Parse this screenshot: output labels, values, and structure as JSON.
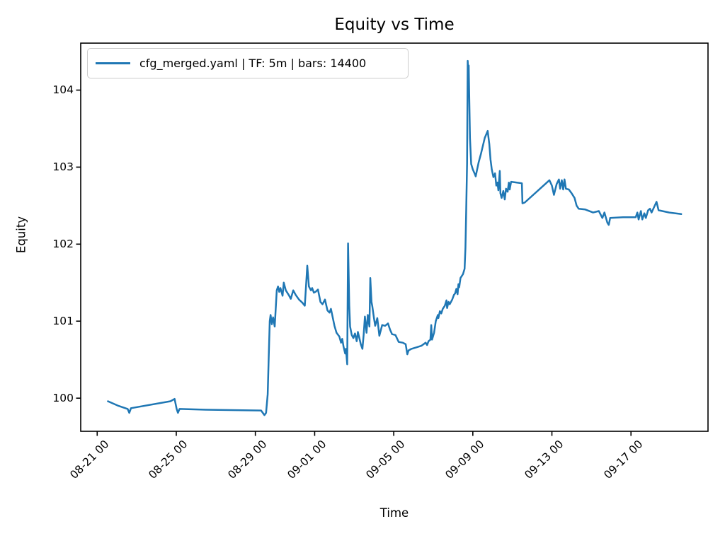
{
  "figure": {
    "background": "#ffffff",
    "text_color": "#000000"
  },
  "chart_data": {
    "type": "line",
    "title": "Equity vs Time",
    "xlabel": "Time",
    "ylabel": "Equity",
    "grid": false,
    "legend": {
      "position": "upper left",
      "entries": [
        "cfg_merged.yaml | TF: 5m | bars: 14400"
      ]
    },
    "line_color": "#1f77b4",
    "axis_color": "#000000",
    "legend_border_color": "#cccccc",
    "ylim": [
      99.57,
      104.61
    ],
    "x_range": [
      "08-20 04:00",
      "09-20 21:30"
    ],
    "y_ticks": [
      100,
      101,
      102,
      103,
      104
    ],
    "x_tick_labels": [
      "08-21 00",
      "08-25 00",
      "08-29 00",
      "09-01 00",
      "09-05 00",
      "09-09 00",
      "09-13 00",
      "09-17 00"
    ],
    "series": [
      {
        "name": "cfg_merged.yaml | TF: 5m | bars: 14400",
        "points": [
          [
            "08-21 13:00",
            99.96
          ],
          [
            "08-22 02:00",
            99.9
          ],
          [
            "08-22 13:00",
            99.86
          ],
          [
            "08-22 15:00",
            99.81
          ],
          [
            "08-22 17:00",
            99.87
          ],
          [
            "08-24 17:00",
            99.96
          ],
          [
            "08-24 22:00",
            99.99
          ],
          [
            "08-25 00:30",
            99.86
          ],
          [
            "08-25 02:00",
            99.81
          ],
          [
            "08-25 04:00",
            99.86
          ],
          [
            "08-26 12:00",
            99.85
          ],
          [
            "08-29 07:00",
            99.84
          ],
          [
            "08-29 11:00",
            99.78
          ],
          [
            "08-29 13:00",
            99.81
          ],
          [
            "08-29 15:00",
            100.05
          ],
          [
            "08-29 16:00",
            100.45
          ],
          [
            "08-29 17:30",
            101.0
          ],
          [
            "08-29 18:30",
            101.08
          ],
          [
            "08-29 20:00",
            100.96
          ],
          [
            "08-29 21:30",
            101.05
          ],
          [
            "08-29 23:30",
            100.93
          ],
          [
            "08-30 02:00",
            101.4
          ],
          [
            "08-30 03:30",
            101.45
          ],
          [
            "08-30 05:00",
            101.38
          ],
          [
            "08-30 06:30",
            101.43
          ],
          [
            "08-30 09:00",
            101.33
          ],
          [
            "08-30 10:30",
            101.5
          ],
          [
            "08-30 13:00",
            101.4
          ],
          [
            "08-30 16:30",
            101.34
          ],
          [
            "08-30 19:00",
            101.29
          ],
          [
            "08-30 22:00",
            101.4
          ],
          [
            "08-31 01:00",
            101.34
          ],
          [
            "08-31 05:00",
            101.28
          ],
          [
            "08-31 09:00",
            101.24
          ],
          [
            "08-31 12:00",
            101.2
          ],
          [
            "08-31 13:30",
            101.45
          ],
          [
            "08-31 15:00",
            101.72
          ],
          [
            "08-31 17:00",
            101.45
          ],
          [
            "08-31 19:30",
            101.4
          ],
          [
            "08-31 21:00",
            101.43
          ],
          [
            "08-31 23:00",
            101.37
          ],
          [
            "09-01 01:00",
            101.38
          ],
          [
            "09-01 04:00",
            101.41
          ],
          [
            "09-01 07:00",
            101.25
          ],
          [
            "09-01 09:30",
            101.22
          ],
          [
            "09-01 12:30",
            101.28
          ],
          [
            "09-01 15:30",
            101.14
          ],
          [
            "09-01 18:00",
            101.11
          ],
          [
            "09-01 19:45",
            101.16
          ],
          [
            "09-02 00:00",
            100.94
          ],
          [
            "09-02 02:30",
            100.85
          ],
          [
            "09-02 06:00",
            100.8
          ],
          [
            "09-02 08:00",
            100.72
          ],
          [
            "09-02 09:30",
            100.77
          ],
          [
            "09-02 11:00",
            100.67
          ],
          [
            "09-02 13:00",
            100.58
          ],
          [
            "09-02 14:00",
            100.64
          ],
          [
            "09-02 15:30",
            100.44
          ],
          [
            "09-02 16:30",
            102.01
          ],
          [
            "09-02 18:00",
            101.2
          ],
          [
            "09-02 19:00",
            100.93
          ],
          [
            "09-02 21:00",
            100.82
          ],
          [
            "09-02 23:00",
            100.78
          ],
          [
            "09-03 01:00",
            100.84
          ],
          [
            "09-03 03:00",
            100.74
          ],
          [
            "09-03 04:30",
            100.86
          ],
          [
            "09-03 06:00",
            100.79
          ],
          [
            "09-03 08:00",
            100.7
          ],
          [
            "09-03 10:00",
            100.64
          ],
          [
            "09-03 11:30",
            100.83
          ],
          [
            "09-03 13:00",
            101.06
          ],
          [
            "09-03 15:00",
            100.85
          ],
          [
            "09-03 16:30",
            101.08
          ],
          [
            "09-03 18:30",
            100.93
          ],
          [
            "09-03 19:30",
            101.56
          ],
          [
            "09-03 21:00",
            101.25
          ],
          [
            "09-03 22:00",
            101.19
          ],
          [
            "09-04 00:00",
            101.04
          ],
          [
            "09-04 01:30",
            100.94
          ],
          [
            "09-04 04:00",
            101.04
          ],
          [
            "09-04 06:30",
            100.81
          ],
          [
            "09-04 10:00",
            100.95
          ],
          [
            "09-04 13:30",
            100.94
          ],
          [
            "09-04 17:00",
            100.97
          ],
          [
            "09-04 19:30",
            100.89
          ],
          [
            "09-04 22:00",
            100.83
          ],
          [
            "09-05 02:00",
            100.82
          ],
          [
            "09-05 06:00",
            100.73
          ],
          [
            "09-05 11:00",
            100.72
          ],
          [
            "09-05 14:30",
            100.7
          ],
          [
            "09-05 16:30",
            100.57
          ],
          [
            "09-05 18:00",
            100.62
          ],
          [
            "09-05 21:30",
            100.64
          ],
          [
            "09-06 03:30",
            100.66
          ],
          [
            "09-06 09:30",
            100.68
          ],
          [
            "09-06 14:45",
            100.72
          ],
          [
            "09-06 16:30",
            100.69
          ],
          [
            "09-06 18:15",
            100.74
          ],
          [
            "09-06 20:30",
            100.76
          ],
          [
            "09-06 21:30",
            100.95
          ],
          [
            "09-06 22:30",
            100.76
          ],
          [
            "09-07 01:00",
            100.85
          ],
          [
            "09-07 03:00",
            101.0
          ],
          [
            "09-07 05:30",
            101.08
          ],
          [
            "09-07 06:15",
            101.04
          ],
          [
            "09-07 08:00",
            101.13
          ],
          [
            "09-07 09:45",
            101.1
          ],
          [
            "09-07 11:30",
            101.16
          ],
          [
            "09-07 14:00",
            101.2
          ],
          [
            "09-07 16:00",
            101.27
          ],
          [
            "09-07 16:45",
            101.17
          ],
          [
            "09-07 18:30",
            101.25
          ],
          [
            "09-07 20:00",
            101.22
          ],
          [
            "09-07 23:00",
            101.28
          ],
          [
            "09-08 01:00",
            101.34
          ],
          [
            "09-08 02:30",
            101.36
          ],
          [
            "09-08 04:00",
            101.42
          ],
          [
            "09-08 05:30",
            101.35
          ],
          [
            "09-08 06:30",
            101.48
          ],
          [
            "09-08 07:30",
            101.44
          ],
          [
            "09-08 09:00",
            101.56
          ],
          [
            "09-08 12:00",
            101.61
          ],
          [
            "09-08 14:00",
            101.68
          ],
          [
            "09-08 15:00",
            101.95
          ],
          [
            "09-08 16:00",
            102.45
          ],
          [
            "09-08 17:00",
            103.05
          ],
          [
            "09-08 17:45",
            104.38
          ],
          [
            "09-08 18:30",
            104.22
          ],
          [
            "09-08 19:00",
            104.32
          ],
          [
            "09-08 20:30",
            103.38
          ],
          [
            "09-08 22:00",
            103.04
          ],
          [
            "09-09 00:00",
            102.97
          ],
          [
            "09-09 02:30",
            102.91
          ],
          [
            "09-09 03:30",
            102.88
          ],
          [
            "09-09 07:00",
            103.06
          ],
          [
            "09-09 10:00",
            103.18
          ],
          [
            "09-09 14:30",
            103.38
          ],
          [
            "09-09 18:00",
            103.47
          ],
          [
            "09-09 20:00",
            103.3
          ],
          [
            "09-09 21:30",
            103.1
          ],
          [
            "09-09 23:00",
            102.97
          ],
          [
            "09-10 01:00",
            102.87
          ],
          [
            "09-10 03:00",
            102.92
          ],
          [
            "09-10 04:30",
            102.76
          ],
          [
            "09-10 06:00",
            102.8
          ],
          [
            "09-10 07:00",
            102.7
          ],
          [
            "09-10 08:45",
            102.95
          ],
          [
            "09-10 09:30",
            102.66
          ],
          [
            "09-10 11:00",
            102.6
          ],
          [
            "09-10 13:00",
            102.69
          ],
          [
            "09-10 14:45",
            102.58
          ],
          [
            "09-10 16:15",
            102.72
          ],
          [
            "09-10 18:15",
            102.68
          ],
          [
            "09-10 19:45",
            102.8
          ],
          [
            "09-10 20:45",
            102.71
          ],
          [
            "09-10 22:30",
            102.81
          ],
          [
            "09-11 05:30",
            102.8
          ],
          [
            "09-11 11:30",
            102.79
          ],
          [
            "09-11 12:15",
            102.53
          ],
          [
            "09-11 15:00",
            102.54
          ],
          [
            "09-12 21:00",
            102.83
          ],
          [
            "09-13 00:00",
            102.76
          ],
          [
            "09-13 02:30",
            102.64
          ],
          [
            "09-13 05:45",
            102.78
          ],
          [
            "09-13 08:30",
            102.84
          ],
          [
            "09-13 10:00",
            102.72
          ],
          [
            "09-13 12:00",
            102.83
          ],
          [
            "09-13 13:45",
            102.71
          ],
          [
            "09-13 15:15",
            102.84
          ],
          [
            "09-13 17:00",
            102.72
          ],
          [
            "09-13 20:30",
            102.71
          ],
          [
            "09-14 00:00",
            102.66
          ],
          [
            "09-14 03:30",
            102.6
          ],
          [
            "09-14 06:00",
            102.5
          ],
          [
            "09-14 08:30",
            102.46
          ],
          [
            "09-14 16:30",
            102.45
          ],
          [
            "09-15 02:00",
            102.41
          ],
          [
            "09-15 09:00",
            102.43
          ],
          [
            "09-15 13:15",
            102.34
          ],
          [
            "09-15 15:45",
            102.41
          ],
          [
            "09-15 19:15",
            102.28
          ],
          [
            "09-15 21:00",
            102.25
          ],
          [
            "09-15 22:45",
            102.34
          ],
          [
            "09-16 14:15",
            102.35
          ],
          [
            "09-17 05:45",
            102.35
          ],
          [
            "09-17 07:45",
            102.41
          ],
          [
            "09-17 09:15",
            102.32
          ],
          [
            "09-17 12:00",
            102.43
          ],
          [
            "09-17 13:45",
            102.32
          ],
          [
            "09-17 16:15",
            102.4
          ],
          [
            "09-17 18:00",
            102.34
          ],
          [
            "09-17 20:45",
            102.44
          ],
          [
            "09-17 23:00",
            102.46
          ],
          [
            "09-18 01:00",
            102.41
          ],
          [
            "09-18 07:00",
            102.55
          ],
          [
            "09-18 09:30",
            102.44
          ],
          [
            "09-18 22:30",
            102.41
          ],
          [
            "09-19 13:00",
            102.39
          ]
        ]
      }
    ]
  }
}
